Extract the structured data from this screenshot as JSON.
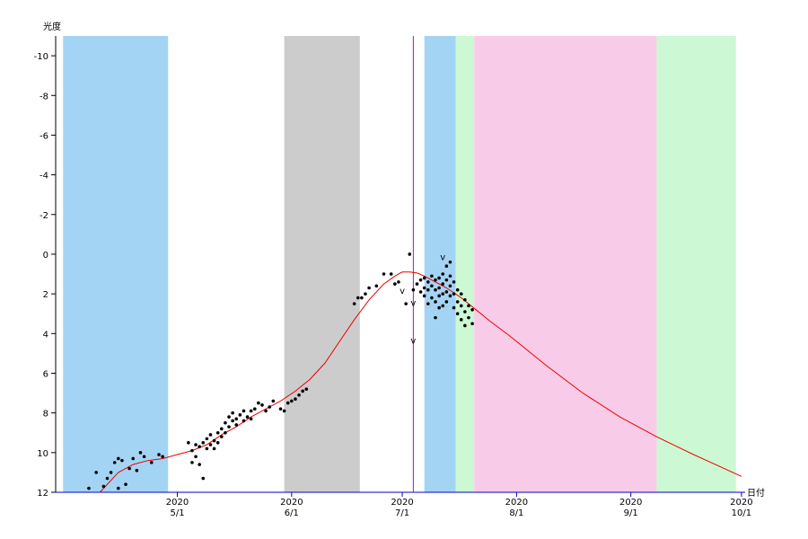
{
  "chart_data": {
    "type": "scatter",
    "title": "",
    "ylabel": "光度",
    "xlabel": "日付",
    "ylim": [
      12,
      -11
    ],
    "y_ticks": [
      -10,
      -8,
      -6,
      -4,
      -2,
      0,
      2,
      4,
      6,
      8,
      10,
      12
    ],
    "y_tick_labels": [
      "-10",
      "-8",
      "-6",
      "-4",
      "-2",
      "0",
      "2",
      "4",
      "6",
      "8",
      "10",
      "12"
    ],
    "y_inverted": true,
    "x_unit": "day of 2020 (Apr 1 = 0)",
    "xlim": [
      -3,
      184
    ],
    "x_ticks": [
      {
        "day": 30,
        "year": "2020",
        "date": "5/1"
      },
      {
        "day": 61,
        "year": "2020",
        "date": "6/1"
      },
      {
        "day": 91,
        "year": "2020",
        "date": "7/1"
      },
      {
        "day": 122,
        "year": "2020",
        "date": "8/1"
      },
      {
        "day": 153,
        "year": "2020",
        "date": "9/1"
      },
      {
        "day": 183,
        "year": "2020",
        "date": "10/1"
      }
    ],
    "bands": [
      {
        "from": -1,
        "to": 27.5,
        "color": "#a4d4f4"
      },
      {
        "from": 59,
        "to": 79.5,
        "color": "#cccccc"
      },
      {
        "from": 97,
        "to": 105.5,
        "color": "#a4d4f4"
      },
      {
        "from": 105.5,
        "to": 110.5,
        "color": "#ccf8d4"
      },
      {
        "from": 110.5,
        "to": 160,
        "color": "#f8cce8"
      },
      {
        "from": 160,
        "to": 181.5,
        "color": "#ccf8d4"
      }
    ],
    "vline": {
      "day": 94,
      "color": "#cc00cc"
    },
    "series": [
      {
        "color": "#000000",
        "x": [
          6,
          8,
          10,
          11,
          12,
          13,
          14,
          14,
          15,
          16,
          17,
          18,
          19,
          20,
          21,
          23,
          25,
          26,
          33,
          34,
          34,
          35,
          35,
          36,
          36,
          37,
          37,
          38,
          38,
          39,
          39,
          40,
          40,
          41,
          41,
          42,
          42,
          43,
          43,
          44,
          44,
          45,
          45,
          46,
          46,
          47,
          48,
          48,
          49,
          50,
          50,
          51,
          52,
          53,
          54,
          55,
          56,
          58,
          59,
          60,
          61,
          62,
          63,
          64,
          65,
          78,
          79,
          80,
          81,
          82,
          84,
          86,
          88,
          89,
          90,
          92,
          93,
          94,
          95,
          96,
          96,
          97,
          97,
          97,
          98,
          98,
          98,
          99,
          99,
          99,
          100,
          100,
          100,
          100,
          101,
          101,
          101,
          101,
          102,
          102,
          102,
          102,
          103,
          103,
          103,
          103,
          104,
          104,
          104,
          104,
          105,
          105,
          105,
          106,
          106,
          106,
          107,
          107,
          107,
          108,
          108,
          108,
          109,
          109,
          110,
          110
        ],
        "y": [
          11.8,
          11.0,
          11.7,
          11.3,
          11.0,
          10.5,
          11.8,
          10.3,
          10.4,
          11.6,
          10.8,
          10.3,
          10.9,
          10.0,
          10.2,
          10.5,
          10.1,
          10.2,
          9.5,
          9.9,
          10.5,
          9.6,
          10.2,
          10.6,
          9.7,
          9.5,
          11.3,
          9.3,
          9.8,
          9.1,
          9.6,
          9.4,
          9.8,
          9.0,
          9.5,
          8.8,
          9.2,
          8.5,
          9.0,
          8.2,
          8.7,
          8.0,
          8.4,
          8.3,
          8.6,
          8.1,
          7.9,
          8.4,
          8.2,
          7.9,
          8.3,
          7.8,
          7.5,
          7.6,
          7.9,
          7.7,
          7.4,
          7.8,
          7.9,
          7.5,
          7.4,
          7.3,
          7.1,
          6.9,
          6.8,
          2.5,
          2.2,
          2.2,
          2.0,
          1.7,
          1.6,
          1.0,
          1.0,
          1.5,
          1.4,
          2.5,
          0.0,
          1.8,
          1.5,
          1.3,
          1.9,
          1.2,
          1.7,
          2.1,
          1.4,
          1.8,
          2.5,
          1.1,
          1.6,
          2.2,
          1.3,
          1.8,
          2.4,
          3.2,
          1.2,
          1.7,
          2.1,
          2.7,
          1.0,
          1.5,
          2.0,
          2.6,
          0.6,
          1.3,
          1.9,
          2.4,
          0.4,
          1.1,
          1.6,
          2.1,
          1.4,
          2.0,
          2.7,
          1.8,
          2.4,
          3.0,
          2.0,
          2.6,
          3.3,
          2.3,
          2.9,
          3.6,
          2.6,
          3.2,
          2.8,
          3.5
        ]
      },
      {
        "color": "#ee0000",
        "x": [
          9,
          14,
          18,
          22,
          26,
          30,
          34,
          38,
          42,
          46,
          50,
          54,
          58,
          62,
          66,
          70,
          74,
          78,
          82,
          86,
          89,
          91,
          93,
          95,
          97,
          99,
          101,
          103,
          105,
          107,
          109,
          111,
          115,
          120,
          130,
          140,
          150,
          160,
          170,
          183
        ],
        "y": [
          12,
          11.0,
          10.6,
          10.4,
          10.3,
          10.1,
          9.9,
          9.6,
          9.1,
          8.7,
          8.2,
          7.8,
          7.4,
          6.9,
          6.3,
          5.5,
          4.4,
          3.3,
          2.3,
          1.5,
          1.1,
          0.9,
          0.9,
          0.95,
          1.1,
          1.3,
          1.5,
          1.7,
          1.95,
          2.2,
          2.5,
          2.8,
          3.4,
          4.1,
          5.6,
          7.0,
          8.2,
          9.2,
          10.1,
          11.2
        ]
      }
    ],
    "annotations": [
      {
        "text": "v",
        "x": 91,
        "y": 2.0
      },
      {
        "text": "v",
        "x": 94,
        "y": 2.6
      },
      {
        "text": "v",
        "x": 94,
        "y": 4.5
      },
      {
        "text": "v",
        "x": 102,
        "y": 0.3
      }
    ]
  }
}
